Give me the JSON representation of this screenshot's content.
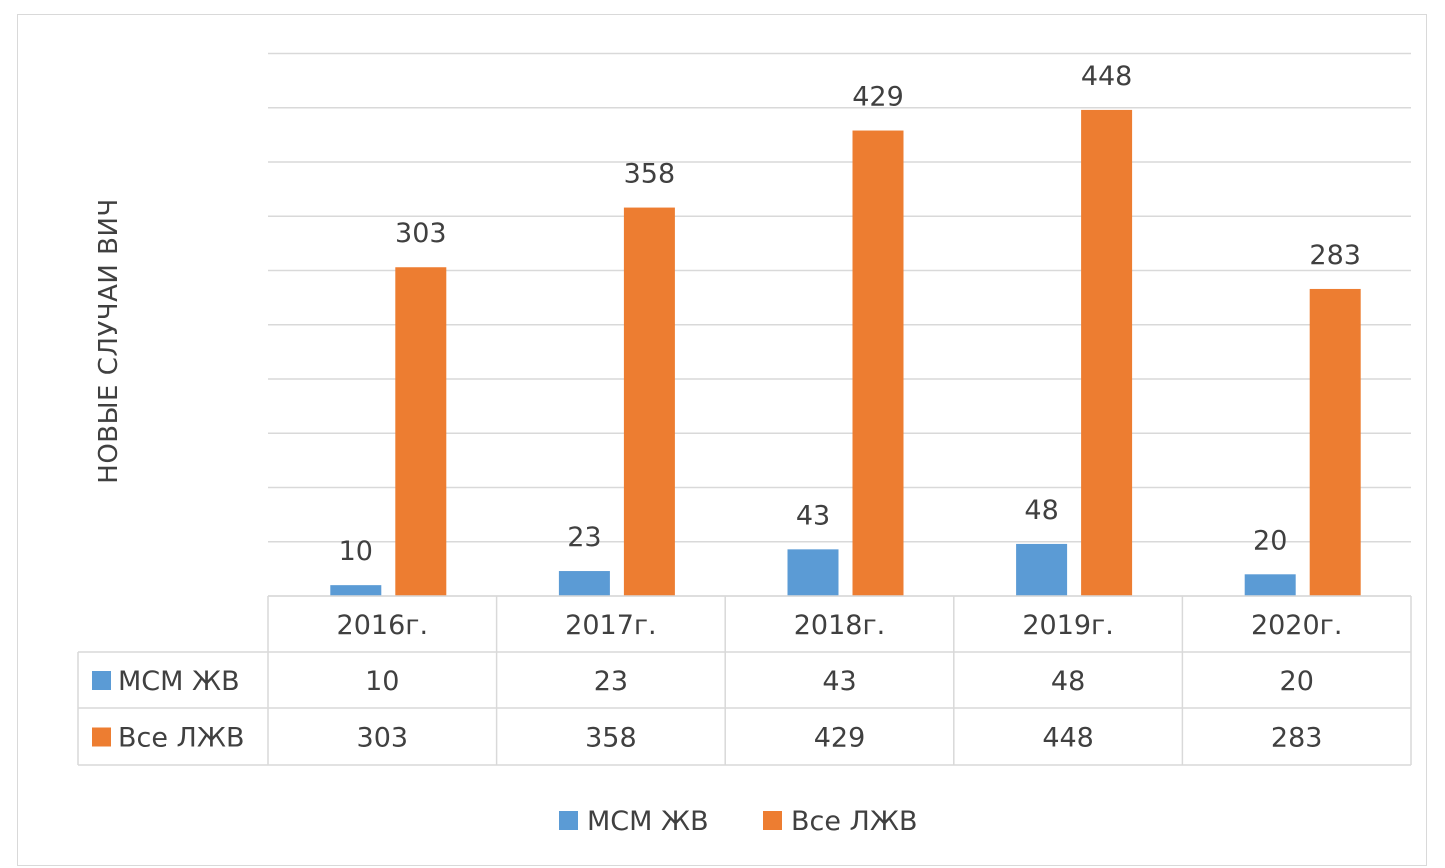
{
  "chart_data": {
    "type": "bar",
    "title": "",
    "ylabel": "НОВЫЕ СЛУЧАИ ВИЧ",
    "xlabel": "",
    "categories": [
      "2016г.",
      "2017г.",
      "2018г.",
      "2019г.",
      "2020г."
    ],
    "series": [
      {
        "name": "МСМ ЖВ",
        "color": "#5B9BD5",
        "values": [
          10,
          23,
          43,
          48,
          20
        ]
      },
      {
        "name": "Все ЛЖВ",
        "color": "#ED7D31",
        "values": [
          303,
          358,
          429,
          448,
          283
        ]
      }
    ],
    "ylim": [
      0,
      500
    ],
    "gridlines": true,
    "data_table": true,
    "legend": "bottom"
  }
}
